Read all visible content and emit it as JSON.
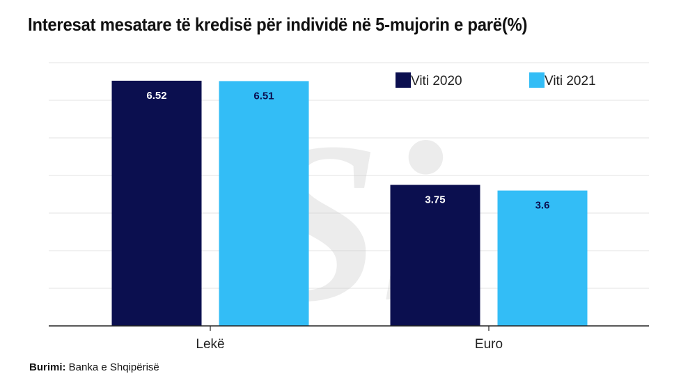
{
  "chart_data": {
    "type": "bar",
    "title": "Interesat mesatare të kredisë për individë në 5-mujorin e parë(%)",
    "categories": [
      "Lekë",
      "Euro"
    ],
    "series": [
      {
        "name": "Viti 2020",
        "color": "#0b0f4f",
        "label_color": "#ffffff",
        "values": [
          6.52,
          3.75
        ]
      },
      {
        "name": "Viti 2021",
        "color": "#33bdf6",
        "label_color": "#0b0f4f",
        "values": [
          6.51,
          3.6
        ]
      }
    ],
    "data_labels": [
      [
        "6.52",
        "3.75"
      ],
      [
        "6.51",
        "3.6"
      ]
    ],
    "ylim": [
      0,
      7
    ],
    "grid": true,
    "legend": "top-right",
    "xlabel": "",
    "ylabel": ""
  },
  "source": {
    "label": "Burimi:",
    "text": "Banka e Shqipërisë"
  },
  "watermark": {
    "text": "Si"
  }
}
